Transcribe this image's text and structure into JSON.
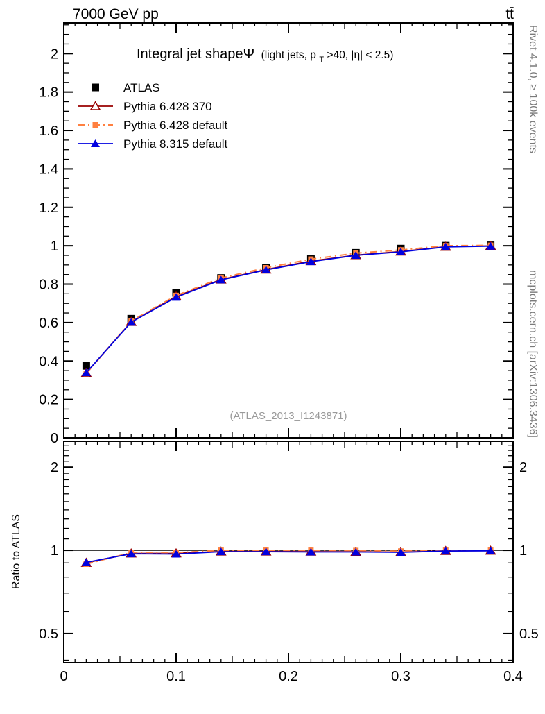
{
  "header": {
    "left": "7000 GeV pp",
    "right": "tt̄"
  },
  "side_notes": {
    "right_top": "Rivet 4.1.0, ≥ 100k events",
    "right_bottom": "mcplots.cern.ch [arXiv:1306.3436]"
  },
  "watermark": "(ATLAS_2013_I1243871)",
  "colors": {
    "atlas": "#000000",
    "pythia6_370": "#990000",
    "pythia6_default": "#ff8040",
    "pythia8_default": "#0000e0",
    "note_gray": "#7a7a7a",
    "watermark_gray": "#9a9a9a"
  },
  "chart_data": [
    {
      "id": "main",
      "type": "line",
      "title": "Integral jet shapeΨ",
      "subtitle_pre": "(light jets, p",
      "subtitle_sub": "T",
      "subtitle_post": ">40, |η| < 2.5)",
      "xlim": [
        0,
        0.4
      ],
      "ylim": [
        0,
        2.16
      ],
      "x_tick_values": [
        0,
        0.1,
        0.2,
        0.3,
        0.4
      ],
      "x_tick_labels": [
        "0",
        "0.1",
        "0.2",
        "0.3",
        "0.4"
      ],
      "x_mid_step": 0.05,
      "x_minor_step": 0.01,
      "y_tick_values": [
        0,
        0.2,
        0.4,
        0.6,
        0.8,
        1,
        1.2,
        1.4,
        1.6,
        1.8,
        2
      ],
      "y_tick_labels": [
        "0",
        "0.2",
        "0.4",
        "0.6",
        "0.8",
        "1",
        "1.2",
        "1.4",
        "1.6",
        "1.8",
        "2"
      ],
      "y_minor_step": 0.05,
      "grid": false,
      "legend_position": "top-left",
      "x": [
        0.02,
        0.06,
        0.1,
        0.14,
        0.18,
        0.22,
        0.26,
        0.3,
        0.34,
        0.38
      ],
      "series": [
        {
          "name": "ATLAS",
          "color": "#000000",
          "marker": "square",
          "marker_size": 11,
          "line": "none",
          "values": [
            0.375,
            0.62,
            0.755,
            0.832,
            0.885,
            0.93,
            0.963,
            0.985,
            1.0,
            1.002
          ]
        },
        {
          "name": "Pythia 6.428 370",
          "color": "#990000",
          "marker": "triangle-open",
          "marker_size": 13,
          "line": "solid",
          "values": [
            0.338,
            0.604,
            0.736,
            0.824,
            0.876,
            0.92,
            0.951,
            0.97,
            0.995,
            0.999
          ]
        },
        {
          "name": "Pythia 6.428 default",
          "color": "#ff8040",
          "marker": "square",
          "marker_size": 8,
          "line": "dashdot",
          "values": [
            0.334,
            0.608,
            0.741,
            0.832,
            0.885,
            0.93,
            0.961,
            0.978,
            1.0,
            1.002
          ]
        },
        {
          "name": "Pythia 8.315 default",
          "color": "#0000e0",
          "marker": "triangle",
          "marker_size": 13,
          "line": "solid",
          "values": [
            0.339,
            0.602,
            0.732,
            0.822,
            0.874,
            0.917,
            0.95,
            0.968,
            0.994,
            0.998
          ]
        }
      ]
    },
    {
      "id": "ratio",
      "type": "line",
      "ylabel": "Ratio to ATLAS",
      "yscale": "log",
      "ylim": [
        0.392,
        2.48
      ],
      "y_tick_values": [
        0.5,
        1,
        2
      ],
      "y_tick_labels": [
        "0.5",
        "1",
        "2"
      ],
      "y_minor_ticks": [
        0.4,
        0.6,
        0.7,
        0.8,
        0.9,
        1.1,
        1.2,
        1.3,
        1.4,
        1.5,
        1.6,
        1.7,
        1.8,
        1.9,
        2.1,
        2.2,
        2.3,
        2.4
      ],
      "reference_line": 1,
      "x": [
        0.02,
        0.06,
        0.1,
        0.14,
        0.18,
        0.22,
        0.26,
        0.3,
        0.34,
        0.38
      ],
      "series": [
        {
          "name": "Pythia 6.428 370",
          "color": "#990000",
          "marker": "triangle-open",
          "marker_size": 13,
          "line": "solid",
          "values": [
            0.901,
            0.974,
            0.975,
            0.99,
            0.99,
            0.989,
            0.988,
            0.985,
            0.995,
            0.997
          ]
        },
        {
          "name": "Pythia 6.428 default",
          "color": "#ff8040",
          "marker": "square",
          "marker_size": 8,
          "line": "dashdot",
          "values": [
            0.891,
            0.981,
            0.981,
            1.0,
            1.0,
            1.0,
            0.998,
            0.993,
            1.0,
            1.0
          ]
        },
        {
          "name": "Pythia 8.315 default",
          "color": "#0000e0",
          "marker": "triangle",
          "marker_size": 13,
          "line": "solid",
          "values": [
            0.904,
            0.971,
            0.969,
            0.988,
            0.988,
            0.986,
            0.986,
            0.983,
            0.994,
            0.996
          ]
        }
      ]
    }
  ]
}
